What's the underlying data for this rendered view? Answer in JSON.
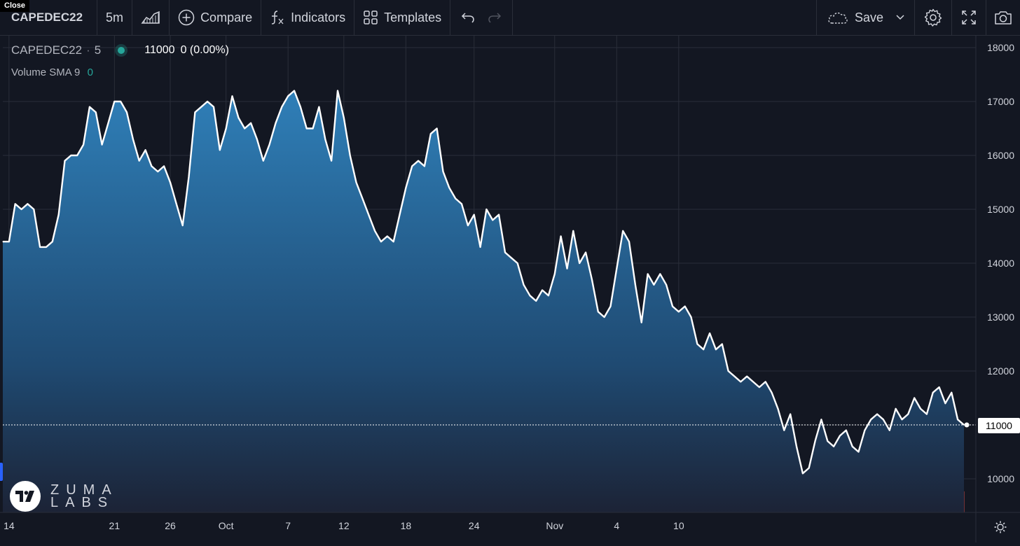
{
  "close_label": "Close",
  "toolbar": {
    "symbol": "CAPEDEC22",
    "interval": "5m",
    "compare_label": "Compare",
    "indicators_label": "Indicators",
    "templates_label": "Templates",
    "save_label": "Save"
  },
  "legend": {
    "symbol": "CAPEDEC22",
    "interval": "5",
    "price": "11000",
    "change": "0 (0.00%)",
    "indicator": "Volume SMA 9",
    "indicator_value": "0"
  },
  "logo": {
    "line1": "ZUMA",
    "line2": "LABS"
  },
  "last_price_label": "11000",
  "colors": {
    "background": "#131722",
    "line": "#ffffff",
    "area_top": "#2f7fb8",
    "area_bottom": "#1c2336",
    "up": "#26a69a",
    "down": "#ef5350",
    "accent": "#2962ff"
  },
  "chart_data": {
    "type": "area",
    "title": "",
    "xlabel": "",
    "ylabel": "",
    "ylim": [
      9400,
      18200
    ],
    "y_ticks": [
      18000,
      17000,
      16000,
      15000,
      14000,
      13000,
      12000,
      11000,
      10000
    ],
    "x_tick_labels": [
      "14",
      "21",
      "26",
      "Oct",
      "7",
      "12",
      "18",
      "24",
      "Nov",
      "4",
      "10"
    ],
    "x_tick_positions": [
      1,
      18,
      27,
      36,
      46,
      55,
      65,
      76,
      89,
      99,
      109
    ],
    "last_price": 11000,
    "grid": true,
    "series": [
      {
        "values": [
          14400,
          14400,
          15100,
          15000,
          15100,
          15000,
          14300,
          14300,
          14400,
          14900,
          15900,
          16000,
          16000,
          16200,
          16900,
          16800,
          16200,
          16600,
          17000,
          17000,
          16800,
          16300,
          15900,
          16100,
          15800,
          15700,
          15800,
          15500,
          15100,
          14700,
          15600,
          16800,
          16900,
          17000,
          16900,
          16100,
          16500,
          17100,
          16700,
          16500,
          16600,
          16300,
          15900,
          16200,
          16600,
          16900,
          17100,
          17200,
          16900,
          16500,
          16500,
          16900,
          16300,
          15900,
          17200,
          16700,
          16000,
          15500,
          15200,
          14900,
          14600,
          14400,
          14500,
          14400,
          14900,
          15400,
          15800,
          15900,
          15800,
          16400,
          16500,
          15700,
          15400,
          15200,
          15100,
          14700,
          14900,
          14300,
          15000,
          14800,
          14900,
          14200,
          14100,
          14000,
          13600,
          13400,
          13300,
          13500,
          13400,
          13800,
          14500,
          13900,
          14600,
          14000,
          14200,
          13700,
          13100,
          13000,
          13200,
          13900,
          14600,
          14400,
          13600,
          12900,
          13800,
          13600,
          13800,
          13600,
          13200,
          13100,
          13200,
          13000,
          12500,
          12400,
          12700,
          12400,
          12500,
          12000,
          11900,
          11800,
          11900,
          11800,
          11700,
          11800,
          11600,
          11300,
          10900,
          11200,
          10600,
          10100,
          10200,
          10700,
          11100,
          10700,
          10600,
          10800,
          10900,
          10600,
          10500,
          10900,
          11100,
          11200,
          11100,
          10900,
          11300,
          11100,
          11200,
          11500,
          11300,
          11200,
          11600,
          11700,
          11400,
          11600,
          11100,
          11000
        ]
      }
    ]
  }
}
